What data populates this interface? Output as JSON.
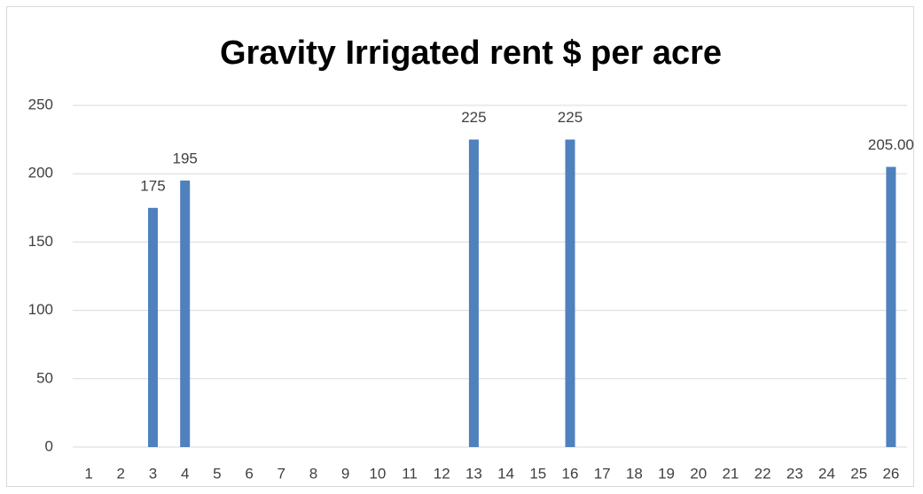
{
  "chart_data": {
    "type": "bar",
    "title": "Gravity Irrigated rent $ per acre",
    "categories": [
      1,
      2,
      3,
      4,
      5,
      6,
      7,
      8,
      9,
      10,
      11,
      12,
      13,
      14,
      15,
      16,
      17,
      18,
      19,
      20,
      21,
      22,
      23,
      24,
      25,
      26
    ],
    "values": [
      null,
      null,
      175,
      195,
      null,
      null,
      null,
      null,
      null,
      null,
      null,
      null,
      225,
      null,
      null,
      225,
      null,
      null,
      null,
      null,
      null,
      null,
      null,
      null,
      null,
      205
    ],
    "value_labels": [
      null,
      null,
      "175",
      "195",
      null,
      null,
      null,
      null,
      null,
      null,
      null,
      null,
      "225",
      null,
      null,
      "225",
      null,
      null,
      null,
      null,
      null,
      null,
      null,
      null,
      null,
      "205.00"
    ],
    "color": "#4f81bd",
    "ylim": [
      0,
      250
    ],
    "yticks": [
      0,
      50,
      100,
      150,
      200,
      250
    ],
    "grid": true
  }
}
